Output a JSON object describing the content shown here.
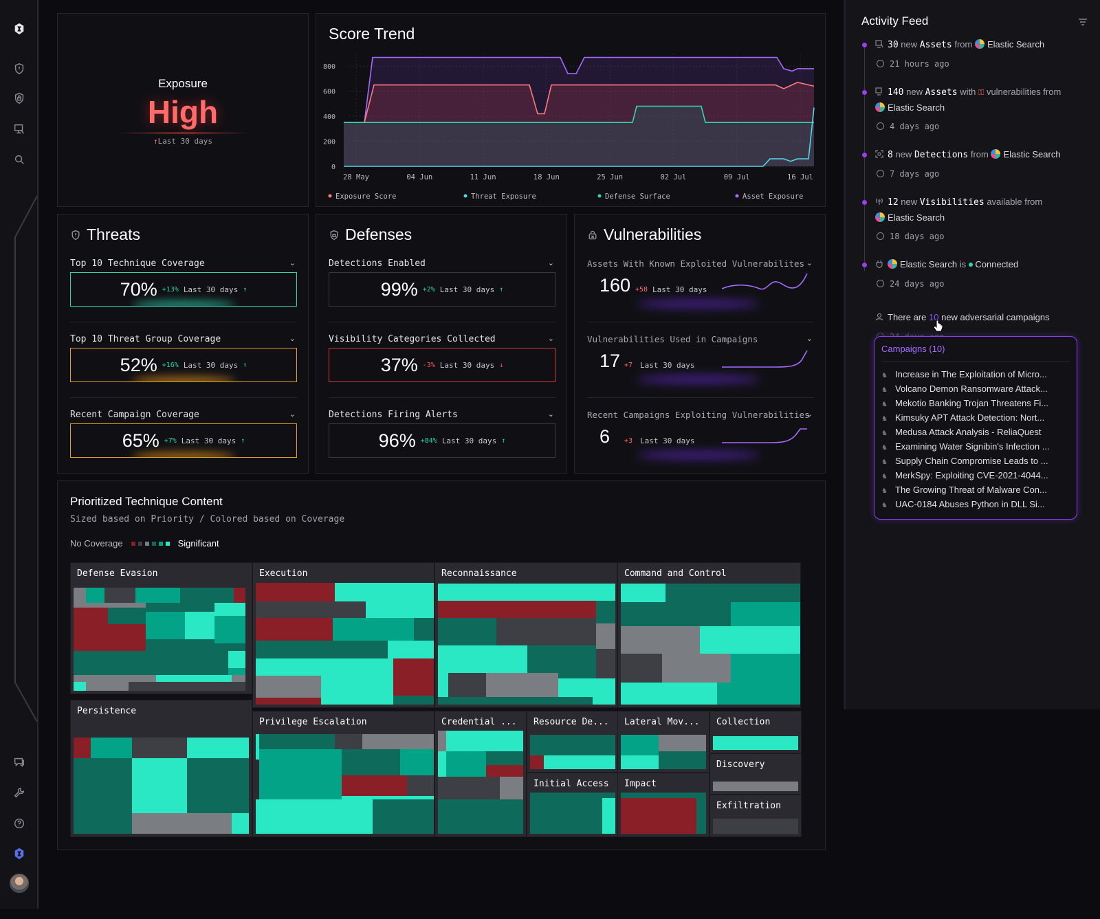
{
  "sidebar": {
    "icons": [
      "logo-icon",
      "shield-alert-icon",
      "shield-lock-icon",
      "monitor-icon",
      "search-icon"
    ],
    "bottom_icons": [
      "chat-icon",
      "wrench-icon",
      "help-icon",
      "brand-icon",
      "avatar"
    ]
  },
  "exposure": {
    "label": "Exposure",
    "value": "High",
    "sub": "Last 30 days",
    "color": "#ff6b6b"
  },
  "score_trend": {
    "title": "Score Trend",
    "y_ticks": [
      "800",
      "600",
      "400",
      "200",
      "0"
    ],
    "x_ticks": [
      "28 May",
      "04 Jun",
      "11 Jun",
      "18 Jun",
      "25 Jun",
      "02 Jul",
      "09 Jul",
      "16 Jul"
    ],
    "legend": [
      {
        "name": "Exposure Score",
        "color": "#ff7a7a"
      },
      {
        "name": "Threat Exposure",
        "color": "#4fd8e8"
      },
      {
        "name": "Defense Surface",
        "color": "#2fd6ae"
      },
      {
        "name": "Asset Exposure",
        "color": "#a56bff"
      }
    ]
  },
  "chart_data": {
    "type": "line",
    "title": "Score Trend",
    "x": [
      "28 May",
      "04 Jun",
      "11 Jun",
      "18 Jun",
      "25 Jun",
      "02 Jul",
      "09 Jul",
      "16 Jul"
    ],
    "ylim": [
      0,
      900
    ],
    "series": [
      {
        "name": "Asset Exposure",
        "values": [
          350,
          870,
          870,
          870,
          870,
          870,
          870,
          770
        ]
      },
      {
        "name": "Exposure Score",
        "values": [
          350,
          650,
          650,
          420,
          650,
          650,
          650,
          640
        ]
      },
      {
        "name": "Defense Surface",
        "values": [
          350,
          350,
          350,
          350,
          350,
          480,
          350,
          350
        ]
      },
      {
        "name": "Threat Exposure",
        "values": [
          0,
          0,
          0,
          0,
          0,
          0,
          60,
          470
        ]
      }
    ]
  },
  "threats": {
    "title": "Threats",
    "metrics": [
      {
        "label": "Top 10 Technique Coverage",
        "value": "70%",
        "delta": "+13%",
        "period": "Last 30 days",
        "arrow": "↑",
        "border": "#2fd6ae",
        "delta_color": "#2fd6ae",
        "glow": "#2fd6ae"
      },
      {
        "label": "Top 10 Threat Group Coverage",
        "value": "52%",
        "delta": "+16%",
        "period": "Last 30 days",
        "arrow": "↑",
        "border": "#e0a020",
        "delta_color": "#2fd6ae",
        "glow": "#e8951e"
      },
      {
        "label": "Recent Campaign Coverage",
        "value": "65%",
        "delta": "+7%",
        "period": "Last 30 days",
        "arrow": "↑",
        "border": "#e0a020",
        "delta_color": "#2fd6ae",
        "glow": "#e8951e"
      }
    ]
  },
  "defenses": {
    "title": "Defenses",
    "metrics": [
      {
        "label": "Detections Enabled",
        "value": "99%",
        "delta": "+2%",
        "period": "Last 30 days",
        "arrow": "↑",
        "border": "#3a3a42",
        "delta_color": "#2fd6ae"
      },
      {
        "label": "Visibility Categories Collected",
        "value": "37%",
        "delta": "-3%",
        "period": "Last 30 days",
        "arrow": "↓",
        "border": "#d03a3a",
        "delta_color": "#ff5a5a"
      },
      {
        "label": "Detections Firing Alerts",
        "value": "96%",
        "delta": "+84%",
        "period": "Last 30 days",
        "arrow": "↑",
        "border": "#3a3a42",
        "delta_color": "#2fd6ae"
      }
    ]
  },
  "vulnerabilities": {
    "title": "Vulnerabilities",
    "metrics": [
      {
        "label": "Assets With Known Exploited Vulnerabilites",
        "value": "160",
        "delta": "+58",
        "period": "Last 30 days"
      },
      {
        "label": "Vulnerabilities Used in Campaigns",
        "value": "17",
        "delta": "+7",
        "period": "Last 30 days"
      },
      {
        "label": "Recent Campaigns Exploiting Vulnerabilities",
        "value": "6",
        "delta": "+3",
        "period": "Last 30 days"
      }
    ]
  },
  "ptc": {
    "title": "Prioritized Technique Content",
    "subtitle": "Sized based on Priority / Colored based on Coverage",
    "legend_left": "No Coverage",
    "legend_right": "Significant",
    "legend_colors": [
      "#8b1f28",
      "#3e3e45",
      "#7a7d82",
      "#0e6a5a",
      "#03a387",
      "#2ae8c4"
    ],
    "tactics": [
      "Defense Evasion",
      "Persistence",
      "Execution",
      "Privilege Escalation",
      "Reconnaissance",
      "Credential ...",
      "Resource De...",
      "Initial Access",
      "Command and Control",
      "Lateral Mov...",
      "Impact",
      "Collection",
      "Discovery",
      "Exfiltration"
    ]
  },
  "activity_feed": {
    "title": "Activity Feed",
    "items": [
      {
        "count": "30",
        "word": "new",
        "kw": "Assets",
        "mid": "from",
        "src": "Elastic Search",
        "time": "21 hours ago"
      },
      {
        "count": "140",
        "word": "new",
        "kw": "Assets",
        "mid": "with",
        "mid2": "vulnerabilities from",
        "src": "Elastic Search",
        "time": "4 days ago"
      },
      {
        "count": "8",
        "word": "new",
        "kw": "Detections",
        "mid": "from",
        "src": "Elastic Search",
        "time": "7 days ago"
      },
      {
        "count": "12",
        "word": "new",
        "kw": "Visibilities",
        "mid": "available from",
        "src": "Elastic Search",
        "time": "18 days ago"
      },
      {
        "src": "Elastic Search",
        "is": "is",
        "status": "Connected",
        "time": "24 days ago"
      },
      {
        "pre": "There are",
        "count": "10",
        "post": "new adversarial campaigns",
        "time": "24 days ago"
      }
    ]
  },
  "campaigns": {
    "header": "Campaigns (10)",
    "items": [
      "Increase in The Exploitation of Micro...",
      "Volcano Demon Ransomware Attack...",
      "Mekotio Banking Trojan Threatens Fi...",
      "Kimsuky APT Attack Detection: Nort...",
      "Medusa Attack Analysis - ReliaQuest",
      "Examining Water Signibin's Infection ...",
      "Supply Chain Compromise Leads to ...",
      "MerkSpy: Exploiting CVE-2021-4044...",
      "The Growing Threat of Malware Con...",
      "UAC-0184 Abuses Python in DLL Si..."
    ]
  }
}
